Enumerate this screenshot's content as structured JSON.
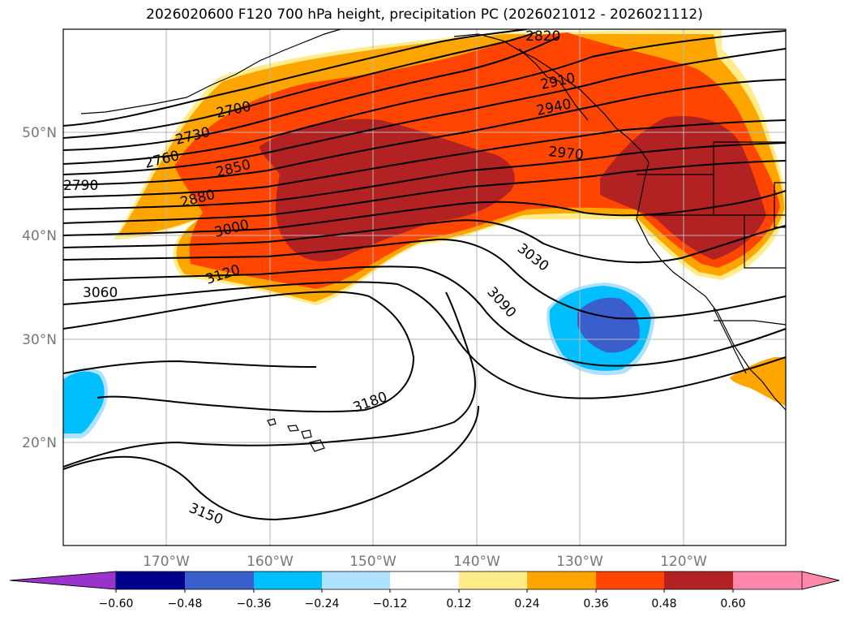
{
  "title": "2026020600 F120 700 hPa height, precipitation PC (2026021012 - 2026021112)",
  "lat_labels": [
    "50°N",
    "40°N",
    "30°N",
    "20°N"
  ],
  "lon_labels": [
    "170°W",
    "160°W",
    "150°W",
    "140°W",
    "130°W",
    "120°W"
  ],
  "colorbar": {
    "colors": [
      "#9933cc",
      "#00008b",
      "#3a5fcd",
      "#00bfff",
      "#b0e2ff",
      "#ffffff",
      "#ffec8b",
      "#ffa500",
      "#ff4500",
      "#b22222",
      "#ff88aa"
    ],
    "tick_labels": [
      "−0.60",
      "−0.48",
      "−0.36",
      "−0.24",
      "−0.12",
      "0.12",
      "0.24",
      "0.36",
      "0.48",
      "0.60"
    ]
  },
  "contour_labels": [
    "2820",
    "2910",
    "2940",
    "2700",
    "2730",
    "2760",
    "2790",
    "2850",
    "2880",
    "2970",
    "3000",
    "3030",
    "3060",
    "3090",
    "3120",
    "3180",
    "3150"
  ]
}
